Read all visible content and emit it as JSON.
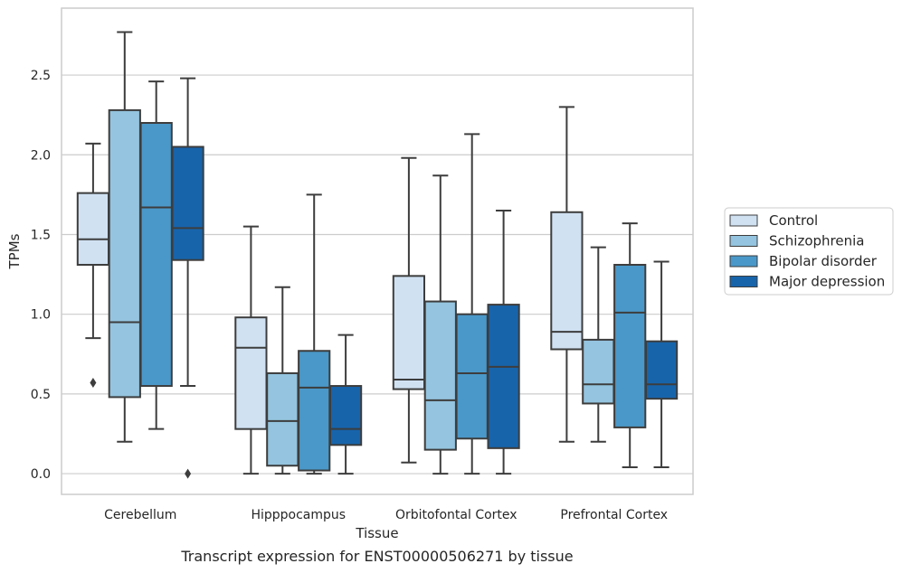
{
  "caption": "Transcript expression for ENST00000506271 by tissue",
  "chart_data": {
    "type": "box",
    "xlabel": "Tissue",
    "ylabel": "TPMs",
    "ylim": [
      -0.13,
      2.92
    ],
    "yticks": [
      "0.0",
      "0.5",
      "1.0",
      "1.5",
      "2.0",
      "2.5"
    ],
    "ytick_values": [
      0,
      0.5,
      1.0,
      1.5,
      2.0,
      2.5
    ],
    "grid": "horizontal",
    "legend_position": "right",
    "categories": [
      "Cerebellum",
      "Hipppocampus",
      "Orbitofontal Cortex",
      "Prefrontal Cortex"
    ],
    "series": [
      {
        "name": "Control",
        "color": "#d0e1f2",
        "boxes": [
          {
            "whislo": 0.85,
            "q1": 1.31,
            "med": 1.47,
            "q3": 1.76,
            "whishi": 2.07,
            "fliers": [
              0.57
            ]
          },
          {
            "whislo": 0.0,
            "q1": 0.28,
            "med": 0.79,
            "q3": 0.98,
            "whishi": 1.55,
            "fliers": []
          },
          {
            "whislo": 0.07,
            "q1": 0.53,
            "med": 0.59,
            "q3": 1.24,
            "whishi": 1.98,
            "fliers": []
          },
          {
            "whislo": 0.2,
            "q1": 0.78,
            "med": 0.89,
            "q3": 1.64,
            "whishi": 2.3,
            "fliers": []
          }
        ]
      },
      {
        "name": "Schizophrenia",
        "color": "#94c4df",
        "boxes": [
          {
            "whislo": 0.2,
            "q1": 0.48,
            "med": 0.95,
            "q3": 2.28,
            "whishi": 2.77,
            "fliers": []
          },
          {
            "whislo": 0.0,
            "q1": 0.05,
            "med": 0.33,
            "q3": 0.63,
            "whishi": 1.17,
            "fliers": []
          },
          {
            "whislo": 0.0,
            "q1": 0.15,
            "med": 0.46,
            "q3": 1.08,
            "whishi": 1.87,
            "fliers": []
          },
          {
            "whislo": 0.2,
            "q1": 0.44,
            "med": 0.56,
            "q3": 0.84,
            "whishi": 1.42,
            "fliers": []
          }
        ]
      },
      {
        "name": "Bipolar disorder",
        "color": "#4a98c9",
        "boxes": [
          {
            "whislo": 0.28,
            "q1": 0.55,
            "med": 1.67,
            "q3": 2.2,
            "whishi": 2.46,
            "fliers": []
          },
          {
            "whislo": 0.0,
            "q1": 0.02,
            "med": 0.54,
            "q3": 0.77,
            "whishi": 1.75,
            "fliers": []
          },
          {
            "whislo": 0.0,
            "q1": 0.22,
            "med": 0.63,
            "q3": 1.0,
            "whishi": 2.13,
            "fliers": []
          },
          {
            "whislo": 0.04,
            "q1": 0.29,
            "med": 1.01,
            "q3": 1.31,
            "whishi": 1.57,
            "fliers": []
          }
        ]
      },
      {
        "name": "Major depression",
        "color": "#1764ab",
        "boxes": [
          {
            "whislo": 0.55,
            "q1": 1.34,
            "med": 1.54,
            "q3": 2.05,
            "whishi": 2.48,
            "fliers": [
              0.0
            ]
          },
          {
            "whislo": 0.0,
            "q1": 0.18,
            "med": 0.28,
            "q3": 0.55,
            "whishi": 0.87,
            "fliers": []
          },
          {
            "whislo": 0.0,
            "q1": 0.16,
            "med": 0.67,
            "q3": 1.06,
            "whishi": 1.65,
            "fliers": []
          },
          {
            "whislo": 0.04,
            "q1": 0.47,
            "med": 0.56,
            "q3": 0.83,
            "whishi": 1.33,
            "fliers": []
          }
        ]
      }
    ]
  }
}
